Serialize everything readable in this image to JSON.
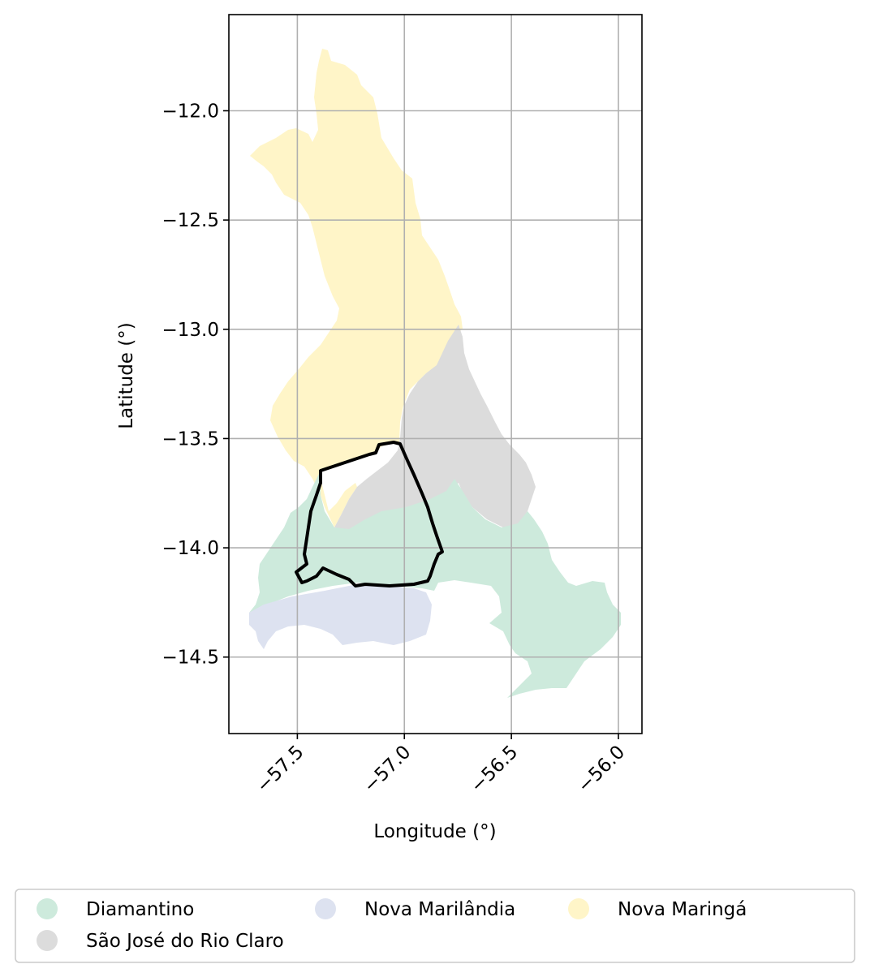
{
  "figure": {
    "xlabel": "Longitude (°)",
    "ylabel": "Latitude (°)",
    "x_ticks": [
      {
        "value": -57.5,
        "label": "−57.5"
      },
      {
        "value": -57.0,
        "label": "−57.0"
      },
      {
        "value": -56.5,
        "label": "−56.5"
      },
      {
        "value": -56.0,
        "label": "−56.0"
      }
    ],
    "y_ticks": [
      {
        "value": -12.0,
        "label": "−12.0"
      },
      {
        "value": -12.5,
        "label": "−12.5"
      },
      {
        "value": -13.0,
        "label": "−13.0"
      },
      {
        "value": -13.5,
        "label": "−13.5"
      },
      {
        "value": -14.0,
        "label": "−14.0"
      },
      {
        "value": -14.5,
        "label": "−14.5"
      }
    ],
    "x_range": [
      -57.82,
      -55.89
    ],
    "y_range": [
      -14.85,
      -11.56
    ],
    "grid": true
  },
  "colors": {
    "diamantino": "#cdeadc",
    "nova_marilandia": "#dde2f0",
    "nova_maringa": "#fff5c8",
    "sao_jose": "#dcdcdc",
    "outline": "#000000",
    "grid": "#b0b0b0"
  },
  "legend": {
    "items": [
      {
        "label": "Diamantino",
        "color": "#cdeadc"
      },
      {
        "label": "Nova Marilândia",
        "color": "#dde2f0"
      },
      {
        "label": "Nova Maringá",
        "color": "#fff5c8"
      },
      {
        "label": "São José do Rio Claro",
        "color": "#dcdcdc"
      }
    ]
  }
}
